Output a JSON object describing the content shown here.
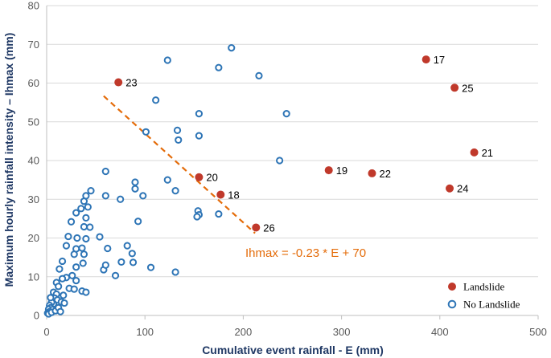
{
  "chart_data": {
    "type": "scatter",
    "xlabel": "Cumulative event rainfall - E (mm)",
    "ylabel": "Maximum hourly rainfall intensity – Ihmax (mm)",
    "xlim": [
      0,
      500
    ],
    "ylim": [
      0,
      80
    ],
    "xticks": [
      0,
      100,
      200,
      300,
      400,
      500
    ],
    "yticks": [
      0,
      10,
      20,
      30,
      40,
      50,
      60,
      70,
      80
    ],
    "grid": "horizontal",
    "legend_position": "bottom-right",
    "colors": {
      "landslide": "#c0392b",
      "no_landslide": "#2e75b6",
      "threshold_line": "#e46c0a",
      "axis_title": "#1f3864",
      "gridline": "#d9d9d9"
    },
    "series": [
      {
        "name": "Landslide",
        "marker": "filled-circle",
        "points": [
          {
            "label": "23",
            "x": 73,
            "y": 60.2
          },
          {
            "label": "20",
            "x": 155,
            "y": 35.7
          },
          {
            "label": "18",
            "x": 177,
            "y": 31.2
          },
          {
            "label": "26",
            "x": 213,
            "y": 22.7
          },
          {
            "label": "19",
            "x": 287,
            "y": 37.5
          },
          {
            "label": "22",
            "x": 331,
            "y": 36.7
          },
          {
            "label": "17",
            "x": 386,
            "y": 66.1
          },
          {
            "label": "25",
            "x": 415,
            "y": 58.8
          },
          {
            "label": "21",
            "x": 435,
            "y": 42.1
          },
          {
            "label": "24",
            "x": 410,
            "y": 32.8
          }
        ]
      },
      {
        "name": "No Landslide",
        "marker": "open-circle",
        "points": [
          {
            "x": 188,
            "y": 69.1
          },
          {
            "x": 123,
            "y": 65.9
          },
          {
            "x": 175,
            "y": 64.0
          },
          {
            "x": 216,
            "y": 61.9
          },
          {
            "x": 111,
            "y": 55.6
          },
          {
            "x": 155,
            "y": 52.1
          },
          {
            "x": 244,
            "y": 52.1
          },
          {
            "x": 101,
            "y": 47.4
          },
          {
            "x": 133,
            "y": 47.8
          },
          {
            "x": 155,
            "y": 46.4
          },
          {
            "x": 134,
            "y": 45.3
          },
          {
            "x": 237,
            "y": 40.0
          },
          {
            "x": 60,
            "y": 37.2
          },
          {
            "x": 90,
            "y": 34.4
          },
          {
            "x": 90,
            "y": 32.7
          },
          {
            "x": 123,
            "y": 35.0
          },
          {
            "x": 131,
            "y": 32.2
          },
          {
            "x": 98,
            "y": 30.9
          },
          {
            "x": 75,
            "y": 30.0
          },
          {
            "x": 154,
            "y": 27.0
          },
          {
            "x": 155,
            "y": 26.0
          },
          {
            "x": 153,
            "y": 25.5
          },
          {
            "x": 175,
            "y": 26.2
          },
          {
            "x": 93,
            "y": 24.3
          },
          {
            "x": 60,
            "y": 30.9
          },
          {
            "x": 45,
            "y": 32.2
          },
          {
            "x": 40,
            "y": 30.9
          },
          {
            "x": 38,
            "y": 29.5
          },
          {
            "x": 42,
            "y": 28.0
          },
          {
            "x": 35,
            "y": 27.6
          },
          {
            "x": 40,
            "y": 25.2
          },
          {
            "x": 30,
            "y": 26.5
          },
          {
            "x": 25,
            "y": 24.2
          },
          {
            "x": 38,
            "y": 22.9
          },
          {
            "x": 44,
            "y": 22.8
          },
          {
            "x": 40,
            "y": 19.8
          },
          {
            "x": 31,
            "y": 20.0
          },
          {
            "x": 22,
            "y": 20.4
          },
          {
            "x": 20,
            "y": 18.0
          },
          {
            "x": 30,
            "y": 17.2
          },
          {
            "x": 36,
            "y": 17.4
          },
          {
            "x": 28,
            "y": 15.8
          },
          {
            "x": 38,
            "y": 15.8
          },
          {
            "x": 54,
            "y": 20.3
          },
          {
            "x": 62,
            "y": 17.3
          },
          {
            "x": 82,
            "y": 18.0
          },
          {
            "x": 87,
            "y": 16.0
          },
          {
            "x": 76,
            "y": 13.8
          },
          {
            "x": 88,
            "y": 13.7
          },
          {
            "x": 58,
            "y": 11.8
          },
          {
            "x": 60,
            "y": 13.0
          },
          {
            "x": 70,
            "y": 10.3
          },
          {
            "x": 106,
            "y": 12.4
          },
          {
            "x": 131,
            "y": 11.2
          },
          {
            "x": 30,
            "y": 12.5
          },
          {
            "x": 37,
            "y": 13.5
          },
          {
            "x": 16,
            "y": 14.0
          },
          {
            "x": 13,
            "y": 12.0
          },
          {
            "x": 20,
            "y": 9.8
          },
          {
            "x": 26,
            "y": 10.3
          },
          {
            "x": 30,
            "y": 9.0
          },
          {
            "x": 16,
            "y": 9.5
          },
          {
            "x": 10,
            "y": 8.5
          },
          {
            "x": 12,
            "y": 7.5
          },
          {
            "x": 23,
            "y": 7.0
          },
          {
            "x": 28,
            "y": 6.8
          },
          {
            "x": 36,
            "y": 6.3
          },
          {
            "x": 40,
            "y": 6.0
          },
          {
            "x": 7,
            "y": 6.0
          },
          {
            "x": 10,
            "y": 5.5
          },
          {
            "x": 17,
            "y": 5.2
          },
          {
            "x": 8,
            "y": 4.5
          },
          {
            "x": 11,
            "y": 4.0
          },
          {
            "x": 15,
            "y": 3.5
          },
          {
            "x": 7,
            "y": 3.0
          },
          {
            "x": 5,
            "y": 3.4
          },
          {
            "x": 3,
            "y": 2.6
          },
          {
            "x": 4,
            "y": 2.0
          },
          {
            "x": 2,
            "y": 1.6
          },
          {
            "x": 6,
            "y": 1.5
          },
          {
            "x": 3,
            "y": 1.0
          },
          {
            "x": 1,
            "y": 0.6
          },
          {
            "x": 2,
            "y": 0.4
          },
          {
            "x": 5,
            "y": 0.8
          },
          {
            "x": 9,
            "y": 1.2
          },
          {
            "x": 12,
            "y": 2.0
          },
          {
            "x": 14,
            "y": 1.0
          },
          {
            "x": 18,
            "y": 3.2
          },
          {
            "x": 4,
            "y": 4.6
          }
        ]
      }
    ],
    "threshold": {
      "equation": "Ihmax = -0.23 * E + 70",
      "x_start": 58,
      "x_end": 212,
      "slope": -0.23,
      "intercept": 70
    },
    "legend": [
      {
        "key": "landslide",
        "label": "Landslide"
      },
      {
        "key": "no_landslide",
        "label": "No Landslide"
      }
    ]
  }
}
